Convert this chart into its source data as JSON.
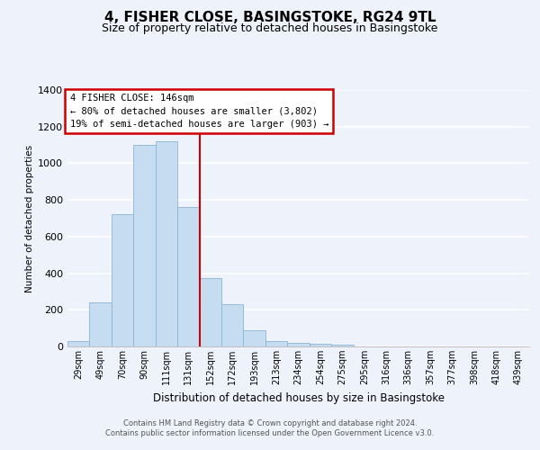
{
  "title": "4, FISHER CLOSE, BASINGSTOKE, RG24 9TL",
  "subtitle": "Size of property relative to detached houses in Basingstoke",
  "xlabel": "Distribution of detached houses by size in Basingstoke",
  "ylabel": "Number of detached properties",
  "footnote1": "Contains HM Land Registry data © Crown copyright and database right 2024.",
  "footnote2": "Contains public sector information licensed under the Open Government Licence v3.0.",
  "bar_labels": [
    "29sqm",
    "49sqm",
    "70sqm",
    "90sqm",
    "111sqm",
    "131sqm",
    "152sqm",
    "172sqm",
    "193sqm",
    "213sqm",
    "234sqm",
    "254sqm",
    "275sqm",
    "295sqm",
    "316sqm",
    "336sqm",
    "357sqm",
    "377sqm",
    "398sqm",
    "418sqm",
    "439sqm"
  ],
  "bar_values": [
    30,
    240,
    720,
    1100,
    1120,
    760,
    375,
    230,
    90,
    30,
    20,
    15,
    8,
    0,
    0,
    0,
    0,
    0,
    0,
    0,
    0
  ],
  "bar_color": "#c6dcf0",
  "bar_edge_color": "#8ab4d4",
  "vline_x": 5.5,
  "vline_color": "#cc0000",
  "annotation_title": "4 FISHER CLOSE: 146sqm",
  "annotation_line1": "← 80% of detached houses are smaller (3,802)",
  "annotation_line2": "19% of semi-detached houses are larger (903) →",
  "annotation_box_color": "#cc0000",
  "ylim": [
    0,
    1400
  ],
  "yticks": [
    0,
    200,
    400,
    600,
    800,
    1000,
    1200,
    1400
  ],
  "background_color": "#eef2fb",
  "plot_background": "#eef2fb",
  "grid_color": "#ffffff",
  "title_fontsize": 11,
  "subtitle_fontsize": 9
}
